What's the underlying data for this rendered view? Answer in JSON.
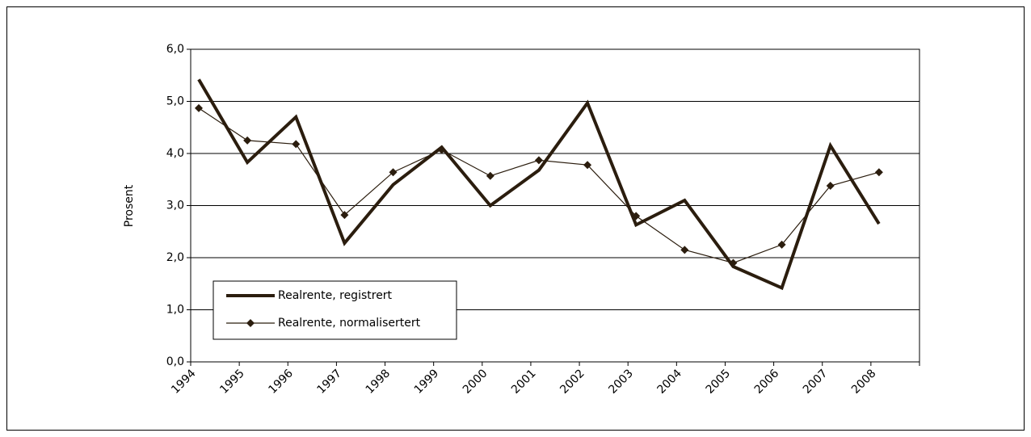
{
  "chart_data": {
    "type": "line",
    "y_label": "Prosent",
    "categories": [
      "1994",
      "1995",
      "1996",
      "1997",
      "1998",
      "1999",
      "2000",
      "2001",
      "2002",
      "2003",
      "2004",
      "2005",
      "2006",
      "2007",
      "2008"
    ],
    "series": [
      {
        "name": "Realrente, registrert",
        "color": "#2b1d0e",
        "marker": "none",
        "values": [
          5.42,
          3.83,
          4.7,
          2.28,
          3.4,
          4.12,
          3.0,
          3.68,
          4.97,
          2.63,
          3.1,
          1.83,
          1.42,
          4.15,
          2.65
        ]
      },
      {
        "name": "Realrente, normalisertert",
        "color": "#2b1d0e",
        "marker": "diamond",
        "values": [
          4.87,
          4.25,
          4.18,
          2.82,
          3.64,
          4.07,
          3.57,
          3.87,
          3.78,
          2.8,
          2.15,
          1.9,
          2.25,
          3.38,
          3.64
        ]
      }
    ],
    "ylim": [
      0,
      6
    ],
    "yticks": [
      {
        "value": 0,
        "label": "0,0"
      },
      {
        "value": 1,
        "label": "1,0"
      },
      {
        "value": 2,
        "label": "2,0"
      },
      {
        "value": 3,
        "label": "3,0"
      },
      {
        "value": 4,
        "label": "4,0"
      },
      {
        "value": 5,
        "label": "5,0"
      },
      {
        "value": 6,
        "label": "6,0"
      }
    ],
    "grid": true,
    "legend": "lower left"
  }
}
